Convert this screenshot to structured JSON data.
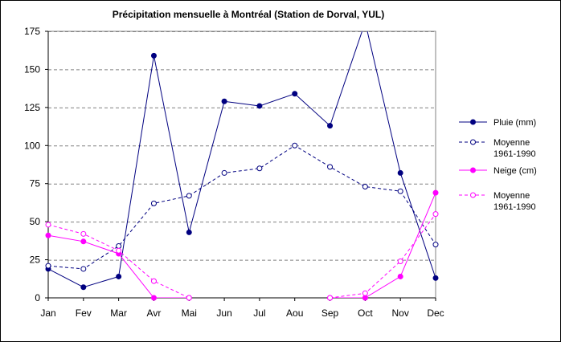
{
  "chart_data": {
    "type": "line",
    "title": "Précipitation mensuelle à Montréal (Station de Dorval, YUL)",
    "xlabel": "",
    "ylabel": "",
    "categories": [
      "Jan",
      "Fev",
      "Mar",
      "Avr",
      "Mai",
      "Jun",
      "Jul",
      "Aou",
      "Sep",
      "Oct",
      "Nov",
      "Dec"
    ],
    "ylim": [
      0,
      175
    ],
    "yticks": [
      0,
      25,
      50,
      75,
      100,
      125,
      150,
      175
    ],
    "grid": "horizontal dashed",
    "legend_position": "right",
    "series": [
      {
        "name": "Pluie (mm)",
        "color": "#000080",
        "style": "solid",
        "marker": "filled-circle",
        "values": [
          19,
          7,
          14,
          159,
          43,
          129,
          126,
          134,
          113,
          181,
          82,
          13
        ]
      },
      {
        "name": "Moyenne 1961-1990",
        "color": "#000080",
        "style": "dashed",
        "marker": "open-circle",
        "values": [
          21,
          19,
          34,
          62,
          67,
          82,
          85,
          100,
          86,
          73,
          70,
          35
        ]
      },
      {
        "name": "Neige (cm)",
        "color": "#ff00ff",
        "style": "solid",
        "marker": "filled-circle",
        "values": [
          41,
          37,
          29,
          0,
          0,
          null,
          null,
          null,
          0,
          0,
          14,
          69
        ]
      },
      {
        "name": "Moyenne 1961-1990",
        "color": "#ff00ff",
        "style": "dashed",
        "marker": "open-circle",
        "values": [
          48,
          42,
          31,
          11,
          0,
          null,
          null,
          null,
          0,
          3,
          24,
          55
        ]
      }
    ],
    "legend": [
      {
        "series": 0,
        "lines": [
          "Pluie (mm)"
        ]
      },
      {
        "series": 1,
        "lines": [
          "Moyenne",
          "1961-1990"
        ]
      },
      {
        "series": 2,
        "lines": [
          "Neige (cm)"
        ]
      },
      {
        "series": 3,
        "lines": [
          "Moyenne",
          "1961-1990"
        ]
      }
    ]
  }
}
